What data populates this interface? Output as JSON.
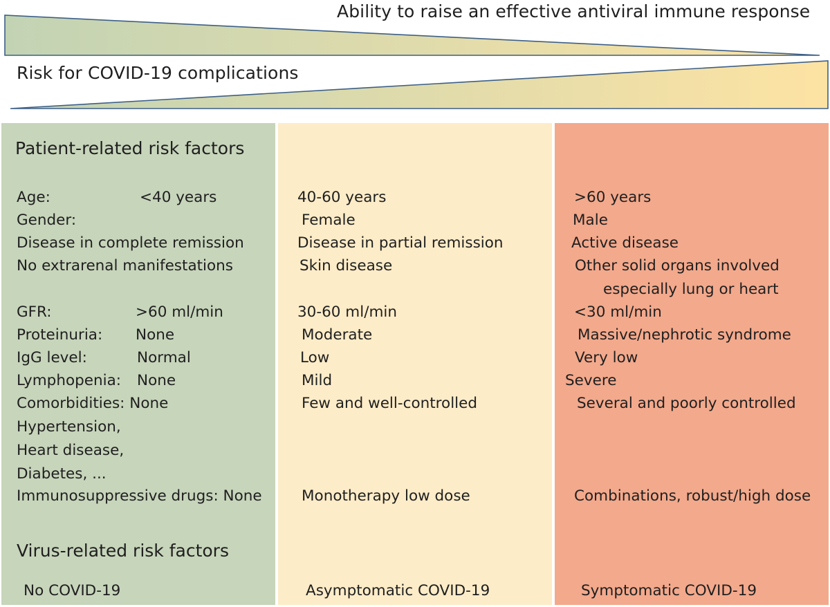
{
  "gradients": {
    "top_label": "Ability to raise an effective antiviral immune response",
    "bottom_label": "Risk for COVID-19 complications",
    "colors": {
      "green": "#c2d3b4",
      "yellow": "#fde3a3",
      "stroke": "#3d5f86"
    }
  },
  "panels": {
    "colors": {
      "low": "#c7d5bb",
      "mid": "#fdecc8",
      "high": "#f3a98c"
    }
  },
  "headings": {
    "patient": "Patient-related risk factors",
    "virus": "Virus-related risk factors"
  },
  "low": {
    "age_label": "Age:",
    "age_value": "<40 years",
    "gender_label": "Gender:",
    "remission": "Disease in complete remission",
    "manifest": "No extrarenal manifestations",
    "gfr_label": "GFR:",
    "gfr_value": ">60 ml/min",
    "prot_label": "Proteinuria:",
    "prot_value": "None",
    "igg_label": "IgG level:",
    "igg_value": "Normal",
    "lymph_label": "Lymphopenia:",
    "lymph_value": "None",
    "comorb": "Comorbidities: None",
    "hypertension": "Hypertension,",
    "heart": "Heart disease,",
    "diabetes": "Diabetes, ...",
    "drugs": "Immunosuppressive drugs: None",
    "virus": "No COVID-19"
  },
  "mid": {
    "age": "40-60 years",
    "gender": "Female",
    "remission": "Disease in partial remission",
    "manifest": "Skin disease",
    "gfr": "30-60 ml/min",
    "prot": "Moderate",
    "igg": "Low",
    "lymph": "Mild",
    "comorb": "Few and well-controlled",
    "drugs": "Monotherapy low dose",
    "virus": "Asymptomatic COVID-19"
  },
  "high": {
    "age": ">60 years",
    "gender": "Male",
    "remission": "Active disease",
    "manifest": "Other solid organs involved",
    "manifest2": "especially lung or heart",
    "gfr": "<30 ml/min",
    "prot": "Massive/nephrotic syndrome",
    "igg": "Very low",
    "lymph": "Severe",
    "comorb": "Several and poorly controlled",
    "drugs": "Combinations, robust/high dose",
    "virus": "Symptomatic COVID-19"
  }
}
